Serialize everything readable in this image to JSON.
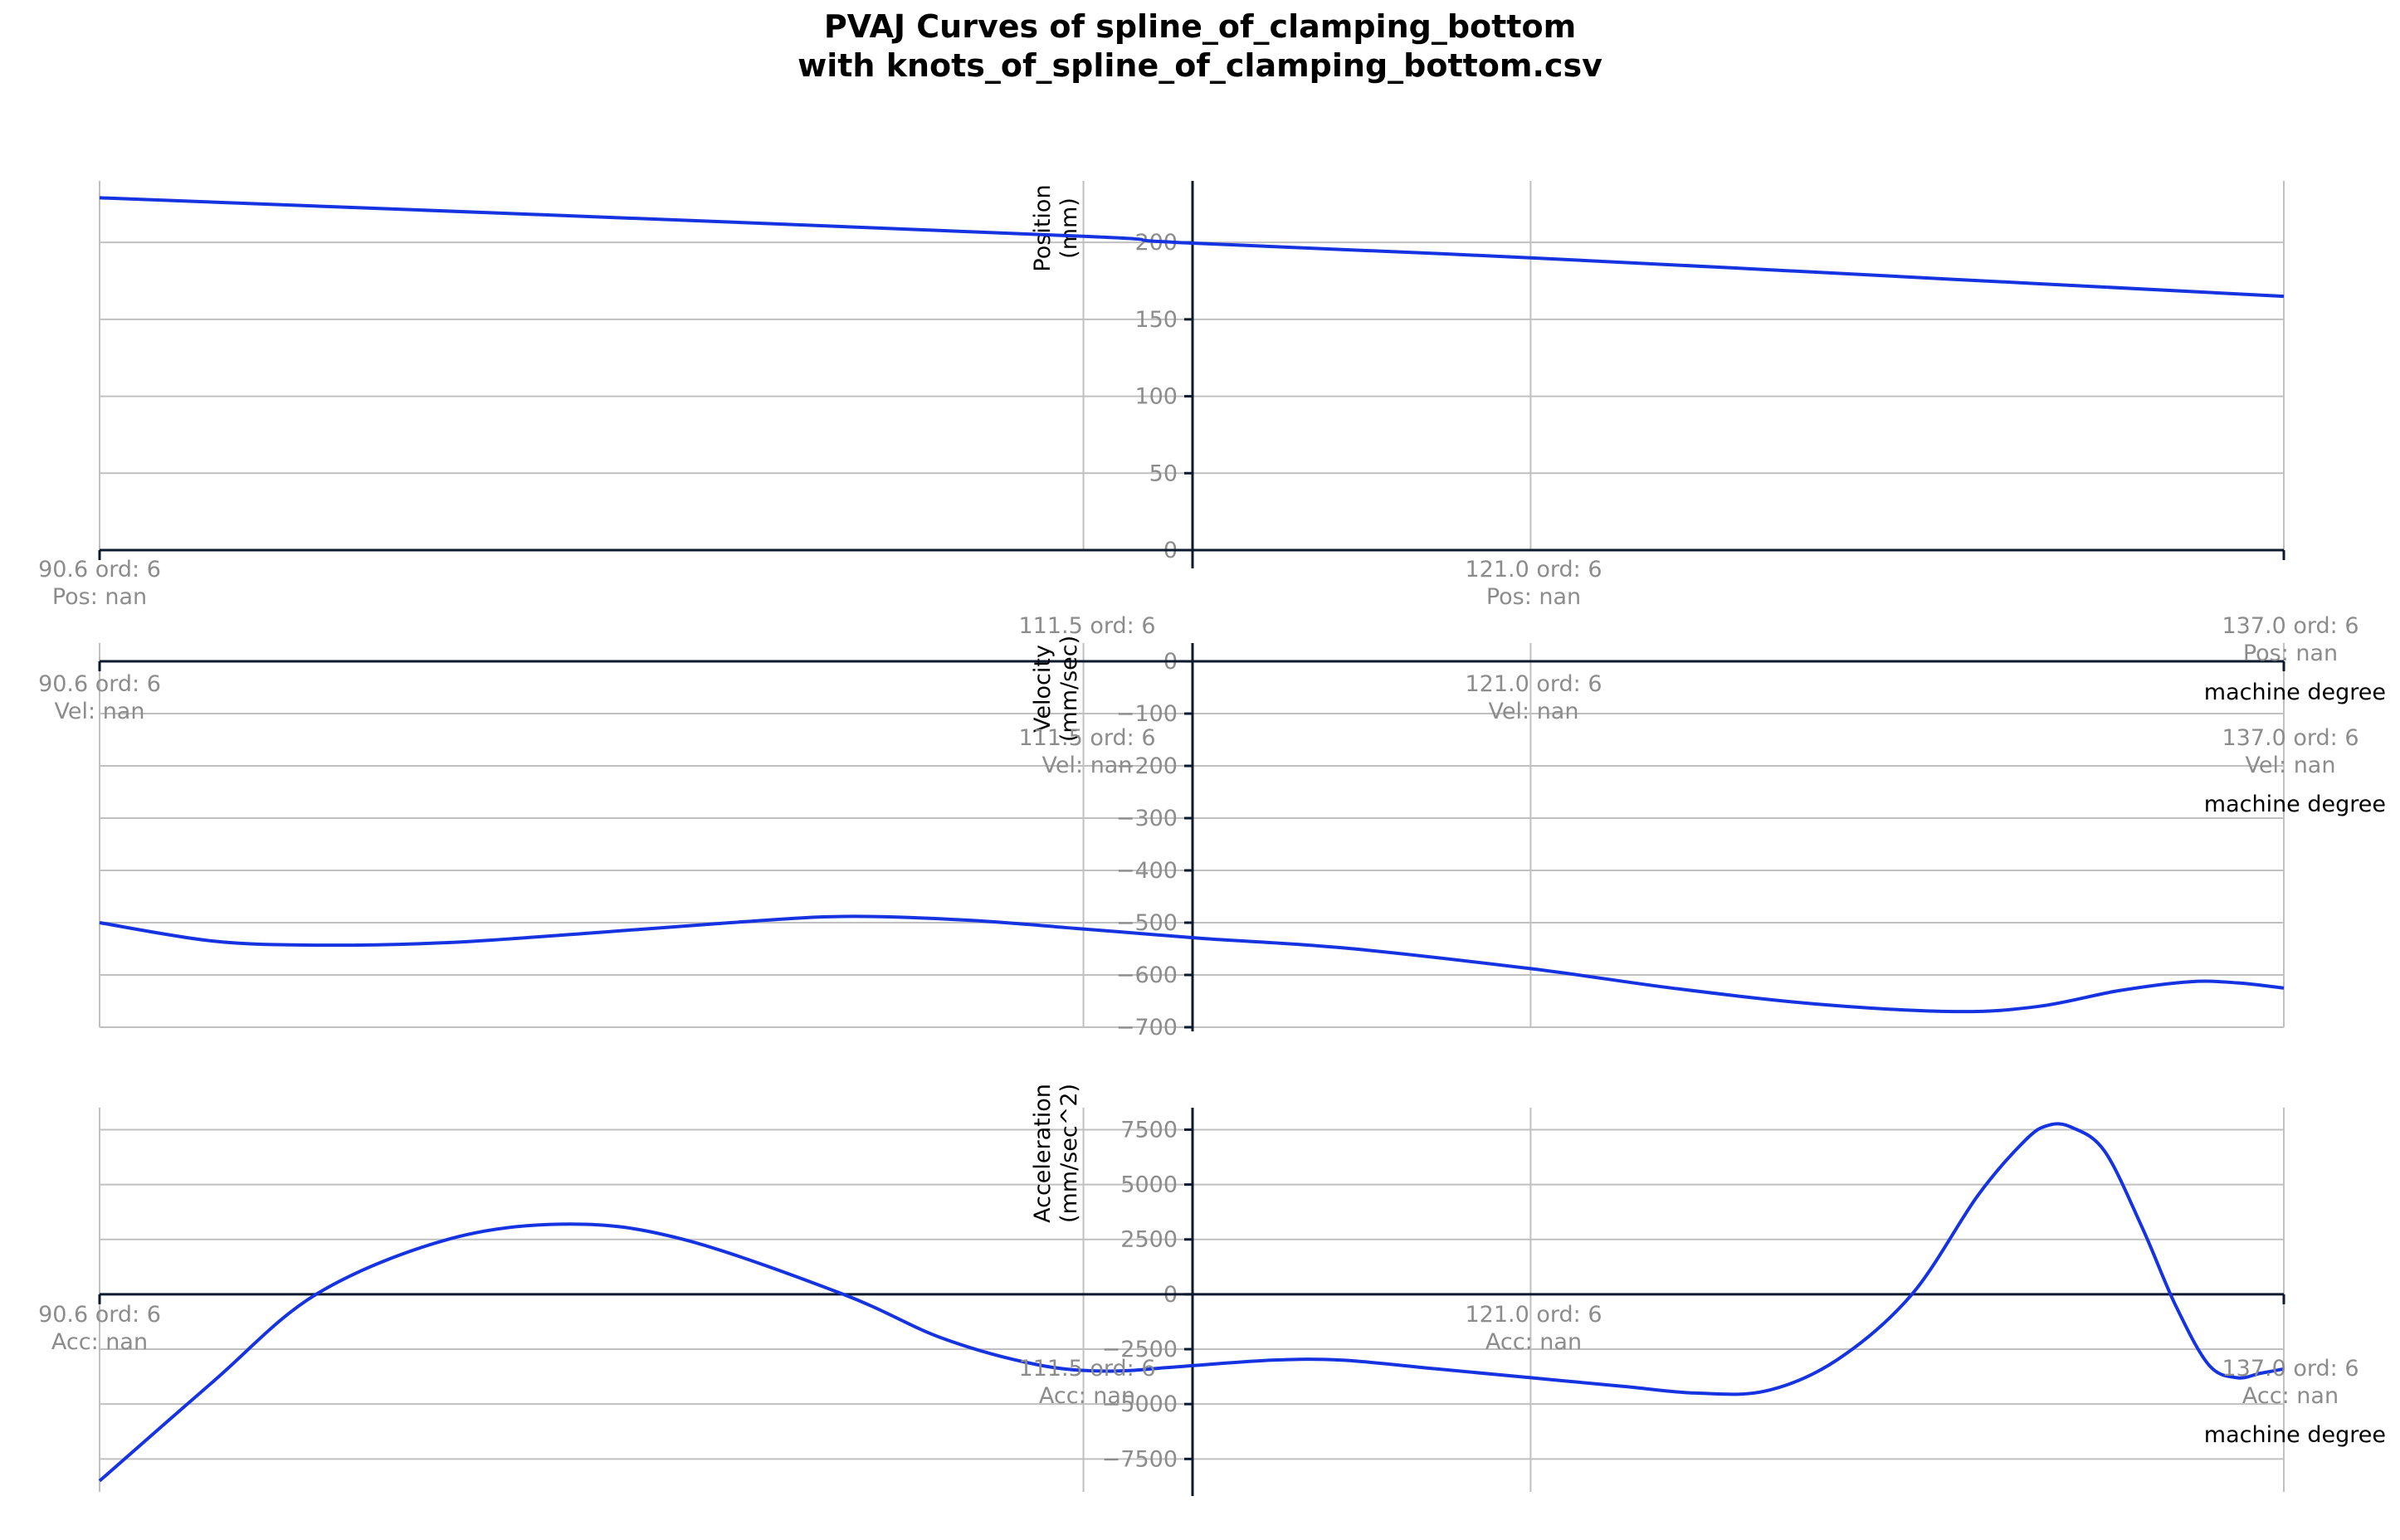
{
  "chart_data": {
    "title_lines": [
      "PVAJ Curves of spline_of_clamping_bottom",
      "with knots_of_spline_of_clamping_bottom.csv"
    ],
    "xlabel": "machine degree",
    "xlim": [
      90.6,
      137.0
    ],
    "colors": {
      "curve": "#1533e0",
      "grid": "#c0c0c0",
      "axis": "#0b1a2e",
      "tick": "#8c8c8c"
    },
    "knots": [
      {
        "x": 90.6,
        "label": "90.6 ord: 6"
      },
      {
        "x": 111.5,
        "label": "111.5 ord: 6"
      },
      {
        "x": 121.0,
        "label": "121.0 ord: 6"
      },
      {
        "x": 137.0,
        "label": "137.0 ord: 6"
      }
    ],
    "panels": [
      {
        "type": "line",
        "name": "position",
        "ylabel": [
          "Position",
          "(mm)"
        ],
        "ylim": [
          0,
          240
        ],
        "yticks": [
          0,
          50,
          100,
          150,
          200
        ],
        "ytick_labels": [
          "0",
          "50",
          "100",
          "150",
          "200"
        ],
        "knot_value_label": "Pos: nan",
        "x": [
          90.6,
          100,
          111.5,
          113.5,
          121.0,
          130,
          137.0
        ],
        "y": [
          229,
          218,
          204,
          200,
          190,
          176,
          165
        ]
      },
      {
        "type": "line",
        "name": "velocity",
        "ylabel": [
          "Velocity",
          "(mm/sec)"
        ],
        "ylim": [
          -700,
          35
        ],
        "yticks": [
          0,
          -100,
          -200,
          -300,
          -400,
          -500,
          -600,
          -700
        ],
        "ytick_labels": [
          "0",
          "−100",
          "−200",
          "−300",
          "−400",
          "−500",
          "−600",
          "−700"
        ],
        "knot_value_label": "Vel: nan",
        "x": [
          90.6,
          93,
          95.2,
          98,
          101,
          104,
          106.4,
          109,
          111.5,
          114,
          117,
          121.0,
          124,
          127,
          130,
          131.8,
          133.5,
          135,
          136,
          137.0
        ],
        "y": [
          -500,
          -535,
          -543,
          -538,
          -520,
          -500,
          -488,
          -495,
          -512,
          -530,
          -548,
          -588,
          -625,
          -655,
          -670,
          -660,
          -630,
          -613,
          -615,
          -625
        ]
      },
      {
        "type": "line",
        "name": "acceleration",
        "ylabel": [
          "Acceleration",
          "(mm/sec^2)"
        ],
        "ylim": [
          -9000,
          8500
        ],
        "yticks": [
          7500,
          5000,
          2500,
          0,
          -2500,
          -5000,
          -7500
        ],
        "ytick_labels": [
          "7500",
          "5000",
          "2500",
          "0",
          "−2500",
          "−5000",
          "−7500"
        ],
        "knot_value_label": "Acc: nan",
        "x": [
          90.6,
          93,
          95.2,
          98,
          100.6,
          103,
          106.4,
          108.5,
          110.5,
          112,
          113.5,
          115.5,
          117,
          119,
          121.0,
          123,
          124.5,
          126,
          127.5,
          129.1,
          130.5,
          131.5,
          132,
          132.5,
          133.2,
          134,
          134.7,
          135.4,
          136,
          136.5,
          137.0
        ],
        "y": [
          -8500,
          -4000,
          0,
          2500,
          3200,
          2500,
          0,
          -2000,
          -3200,
          -3500,
          -3300,
          -3000,
          -3000,
          -3400,
          -3800,
          -4200,
          -4500,
          -4400,
          -3000,
          0,
          4500,
          7000,
          7700,
          7600,
          6500,
          3000,
          -500,
          -3200,
          -3800,
          -3600,
          -3400
        ]
      }
    ]
  }
}
